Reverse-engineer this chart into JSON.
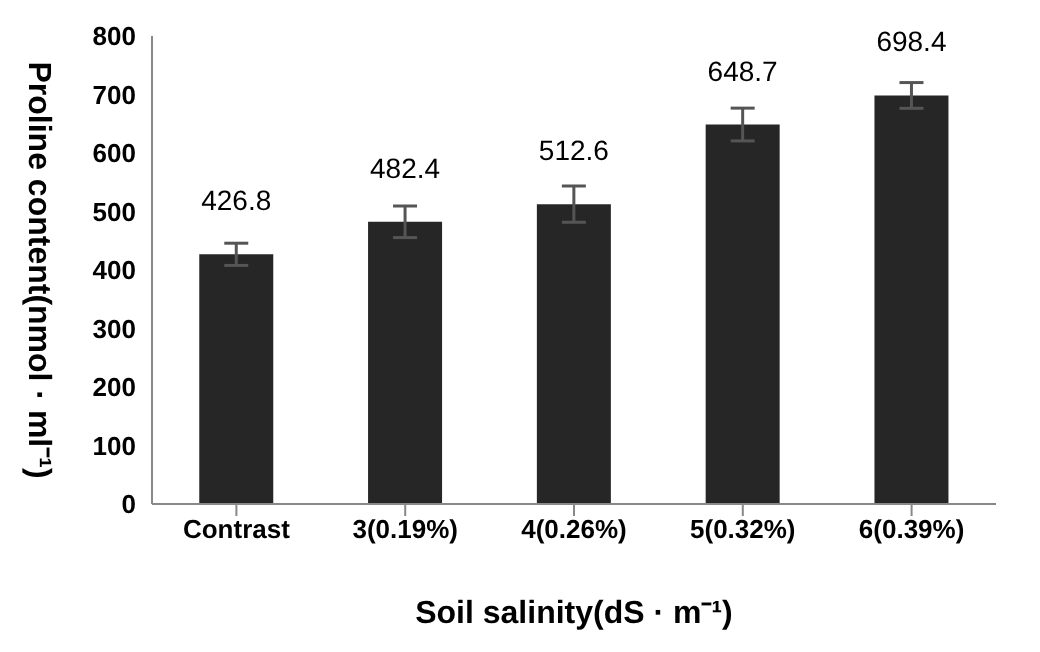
{
  "chart_data": {
    "type": "bar",
    "xlabel": "Soil salinity(dS · m⁻¹)",
    "ylabel": "Proline content(nmol · ml⁻¹)",
    "categories": [
      "Contrast",
      "3(0.19%)",
      "4(0.26%)",
      "5(0.32%)",
      "6(0.39%)"
    ],
    "values": [
      426.8,
      482.4,
      512.6,
      648.7,
      698.4
    ],
    "errors": [
      19,
      27,
      31,
      28,
      22
    ],
    "color": "#262626",
    "ylim": [
      0,
      800
    ],
    "yticks": [
      0,
      100,
      200,
      300,
      400,
      500,
      600,
      700,
      800
    ],
    "data_labels": true
  }
}
